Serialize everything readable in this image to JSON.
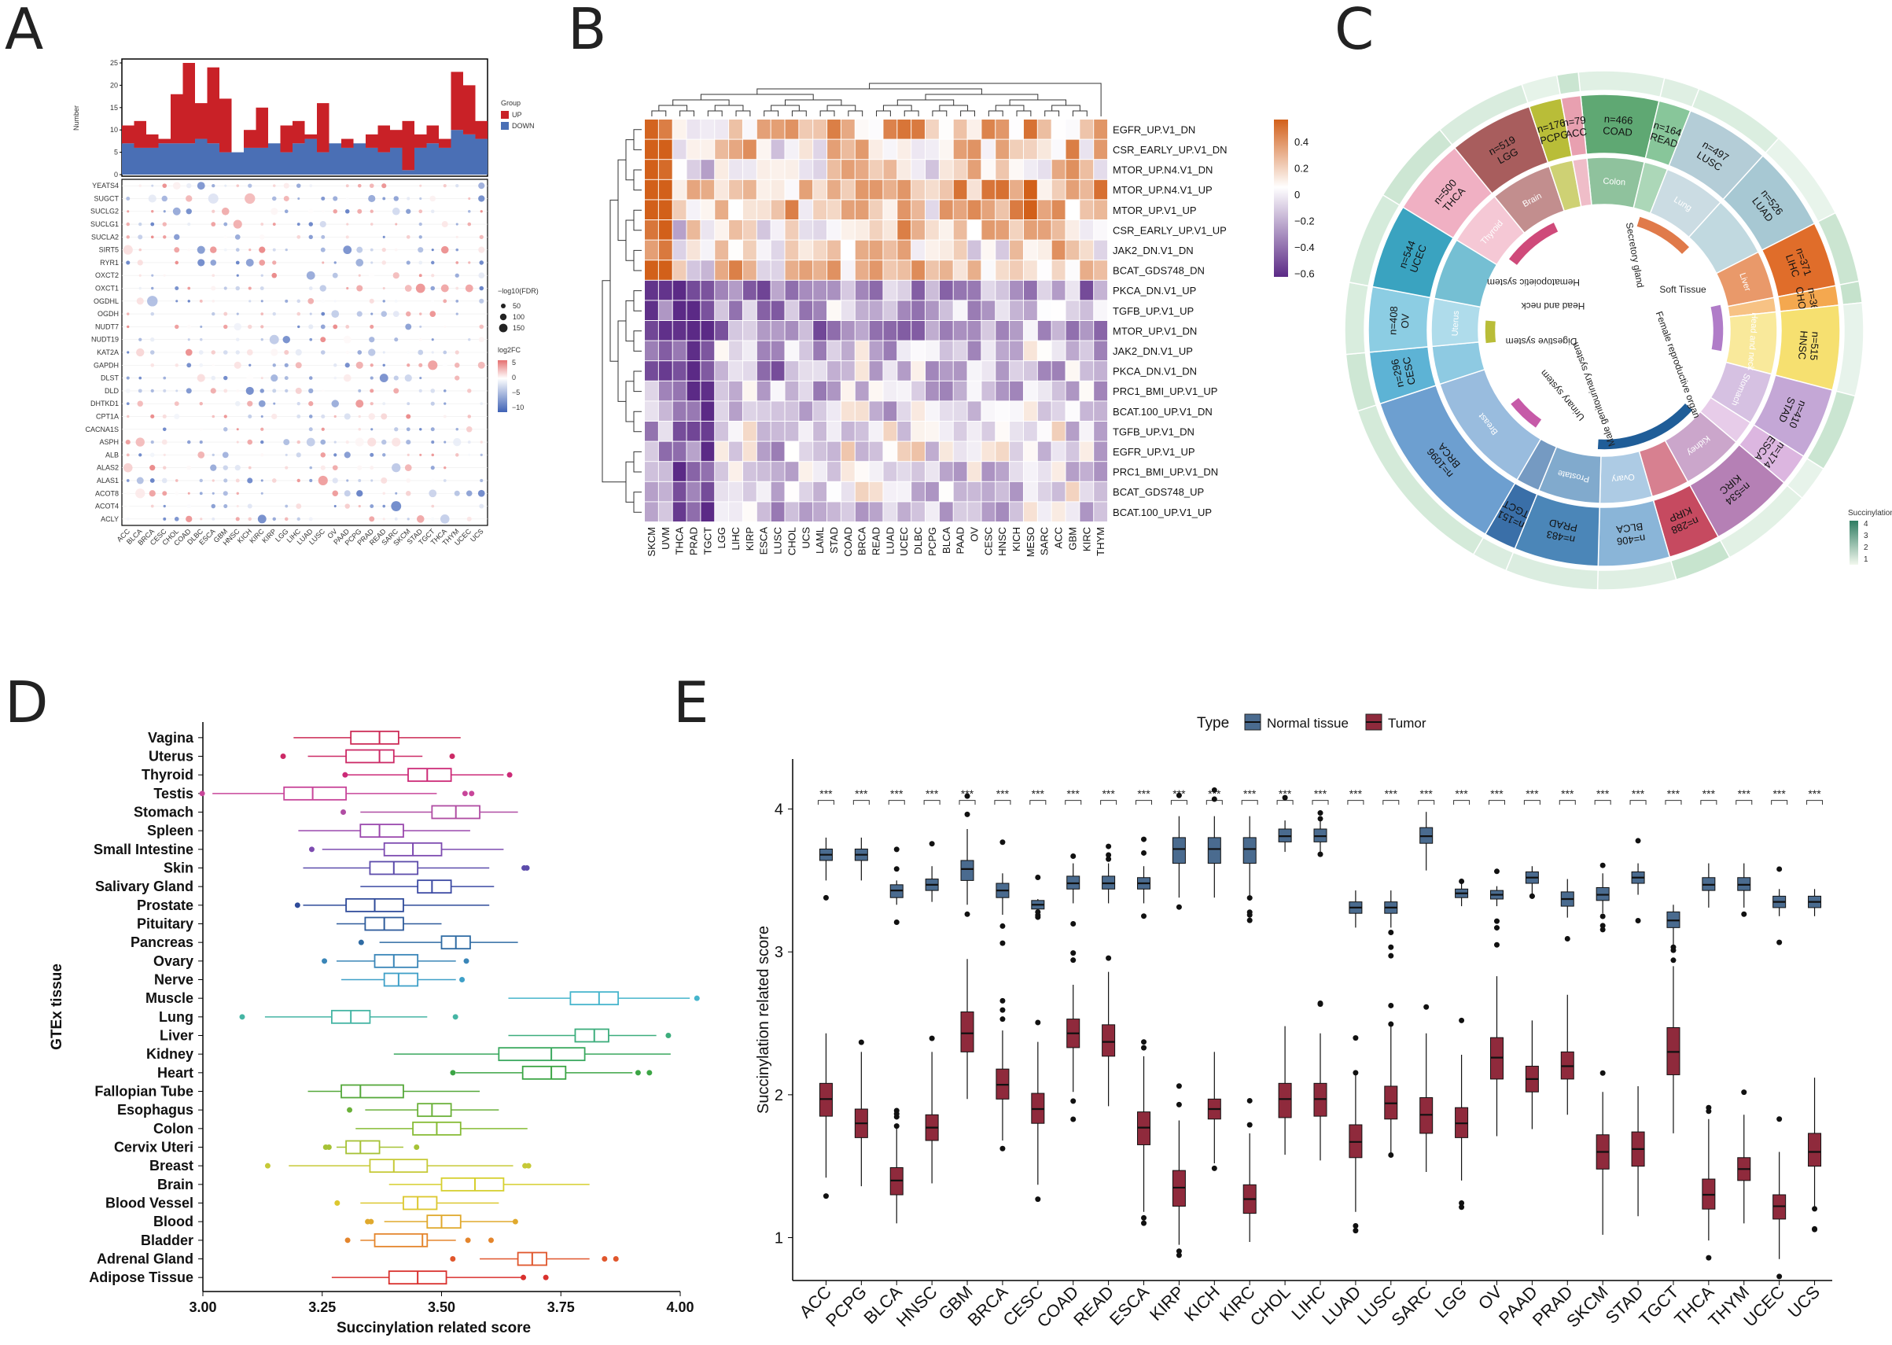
{
  "panels": {
    "A": {
      "letter": "A",
      "chart_data": {
        "type": "bar+dot",
        "ylabel_top": "Number",
        "y_ticks_top": [
          "0",
          "5",
          "10",
          "15",
          "20",
          "25"
        ],
        "legend_group_title": "Group",
        "legend_groups": [
          "UP",
          "DOWN"
        ],
        "legend_size_title": "−log10(FDR)",
        "legend_size_values": [
          "50",
          "100",
          "150"
        ],
        "legend_color_title": "log2FC",
        "legend_color_values": [
          "5",
          "0",
          "−5",
          "−10"
        ],
        "cancers": [
          "ACC",
          "BLCA",
          "BRCA",
          "CESC",
          "CHOL",
          "COAD",
          "DLBC",
          "ESCA",
          "GBM",
          "HNSC",
          "KICH",
          "KIRC",
          "KIRP",
          "LGG",
          "LIHC",
          "LUAD",
          "LUSC",
          "OV",
          "PAAD",
          "PCPG",
          "PRAD",
          "READ",
          "SARC",
          "SKCM",
          "STAD",
          "TGCT",
          "THCA",
          "THYM",
          "UCEC",
          "UCS"
        ],
        "genes": [
          "YEATS4",
          "SUGCT",
          "SUCLG2",
          "SUCLG1",
          "SUCLA2",
          "SIRT5",
          "RYR1",
          "OXCT2",
          "OXCT1",
          "OGDHL",
          "OGDH",
          "NUDT7",
          "NUDT19",
          "KAT2A",
          "GAPDH",
          "DLST",
          "DLD",
          "DHTKD1",
          "CPT1A",
          "CACNA1S",
          "ASPH",
          "ALB",
          "ALAS2",
          "ALAS1",
          "ACOT8",
          "ACOT4",
          "ACLY"
        ],
        "up_counts": [
          11,
          12,
          9,
          8,
          18,
          25,
          16,
          24,
          17,
          5,
          10,
          15,
          3,
          11,
          12,
          9,
          16,
          7,
          8,
          6,
          9,
          11,
          10,
          12,
          9,
          11,
          8,
          23,
          20,
          12
        ],
        "down_counts": [
          7,
          6,
          6,
          7,
          7,
          7,
          8,
          7,
          5,
          5,
          6,
          6,
          7,
          5,
          7,
          8,
          5,
          7,
          6,
          7,
          6,
          5,
          6,
          1,
          6,
          7,
          6,
          10,
          9,
          8
        ]
      }
    },
    "B": {
      "letter": "B",
      "chart_data": {
        "type": "heatmap",
        "columns": [
          "SKCM",
          "UVM",
          "THCA",
          "PRAD",
          "TGCT",
          "LGG",
          "LIHC",
          "KIRP",
          "ESCA",
          "LUSC",
          "CHOL",
          "UCS",
          "LAML",
          "STAD",
          "COAD",
          "BRCA",
          "READ",
          "LUAD",
          "UCEC",
          "DLBC",
          "PCPG",
          "BLCA",
          "PAAD",
          "OV",
          "CESC",
          "HNSC",
          "KICH",
          "MESO",
          "SARC",
          "ACC",
          "GBM",
          "KIRC",
          "THYM"
        ],
        "rows": [
          "EGFR_UP.V1_DN",
          "CSR_EARLY_UP.V1_DN",
          "MTOR_UP.N4.V1_DN",
          "MTOR_UP.N4.V1_UP",
          "MTOR_UP.V1_UP",
          "CSR_EARLY_UP.V1_UP",
          "JAK2_DN.V1_DN",
          "BCAT_GDS748_DN",
          "PKCA_DN.V1_UP",
          "TGFB_UP.V1_UP",
          "MTOR_UP.V1_DN",
          "JAK2_DN.V1_UP",
          "PKCA_DN.V1_DN",
          "PRC1_BMI_UP.V1_UP",
          "BCAT.100_UP.V1_DN",
          "TGFB_UP.V1_DN",
          "EGFR_UP.V1_UP",
          "PRC1_BMI_UP.V1_DN",
          "BCAT_GDS748_UP",
          "BCAT.100_UP.V1_UP"
        ],
        "color_scale_ticks": [
          "0.4",
          "0.2",
          "0",
          "−0.2",
          "−0.4",
          "−0.6"
        ],
        "color_range": [
          -0.6,
          0.45
        ]
      }
    },
    "C": {
      "letter": "C",
      "chart_data": {
        "type": "circos",
        "legend_title": "Succinylation.score",
        "legend_values": [
          "4",
          "3",
          "2",
          "1"
        ],
        "cancer_labels": [
          "n=466 COAD",
          "n=164 READ",
          "n=497 LUSC",
          "n=526 LUAD",
          "n=371 LIHC",
          "n=36 CHOL",
          "n=515 HNSC",
          "n=410 STAD",
          "n=174 ESCA",
          "n=534 KIRC",
          "n=288 KIRP",
          "n=406 BLCA",
          "n=483 PRAD",
          "n=151 TGCT",
          "n=1096 BRCA",
          "n=296 CESC",
          "n=408 OV",
          "n=544 UCEC",
          "n=500 THCA",
          "n=519 LGG",
          "n=176 PCPG",
          "n=79 ACC"
        ],
        "organ_labels": [
          "Colon",
          "Lung",
          "Liver",
          "Head and neck",
          "Stomach",
          "Kidney",
          "Prostate",
          "Breast",
          "Uterus",
          "Ovary",
          "Thyroid",
          "Brain",
          "Adrenal gland",
          "Testis"
        ],
        "system_labels": [
          "Secretory gland",
          "Hematopoietic system",
          "Head and neck",
          "Digestive system",
          "Male genitourinary system",
          "Urinary system",
          "Female reproductive organ",
          "Soft Tissue",
          "Nervous system"
        ]
      }
    },
    "D": {
      "letter": "D",
      "chart_data": {
        "type": "boxplot-horizontal",
        "xlabel": "Succinylation related score",
        "ylabel": "GTEx tissue",
        "xlim": [
          3.0,
          4.0
        ],
        "x_ticks": [
          "3.00",
          "3.25",
          "3.50",
          "3.75",
          "4.00"
        ],
        "tissues": [
          "Vagina",
          "Uterus",
          "Thyroid",
          "Testis",
          "Stomach",
          "Spleen",
          "Small Intestine",
          "Skin",
          "Salivary Gland",
          "Prostate",
          "Pituitary",
          "Pancreas",
          "Ovary",
          "Nerve",
          "Muscle",
          "Lung",
          "Liver",
          "Kidney",
          "Heart",
          "Fallopian Tube",
          "Esophagus",
          "Colon",
          "Cervix Uteri",
          "Breast",
          "Brain",
          "Blood Vessel",
          "Blood",
          "Bladder",
          "Adrenal Gland",
          "Adipose Tissue"
        ],
        "medians": [
          3.37,
          3.37,
          3.47,
          3.23,
          3.53,
          3.37,
          3.44,
          3.4,
          3.48,
          3.36,
          3.38,
          3.53,
          3.4,
          3.41,
          3.83,
          3.31,
          3.82,
          3.73,
          3.73,
          3.33,
          3.48,
          3.49,
          3.33,
          3.4,
          3.57,
          3.45,
          3.5,
          3.46,
          3.69,
          3.45
        ],
        "q1": [
          3.31,
          3.3,
          3.43,
          3.17,
          3.48,
          3.33,
          3.38,
          3.35,
          3.45,
          3.3,
          3.34,
          3.5,
          3.36,
          3.38,
          3.77,
          3.27,
          3.78,
          3.62,
          3.67,
          3.29,
          3.45,
          3.44,
          3.3,
          3.35,
          3.5,
          3.42,
          3.47,
          3.36,
          3.66,
          3.39
        ],
        "q3": [
          3.41,
          3.4,
          3.52,
          3.3,
          3.58,
          3.42,
          3.5,
          3.45,
          3.52,
          3.42,
          3.42,
          3.56,
          3.45,
          3.45,
          3.87,
          3.35,
          3.85,
          3.8,
          3.76,
          3.42,
          3.52,
          3.54,
          3.37,
          3.47,
          3.63,
          3.49,
          3.54,
          3.47,
          3.72,
          3.51
        ],
        "whisker_low": [
          3.19,
          3.22,
          3.3,
          3.02,
          3.33,
          3.2,
          3.25,
          3.21,
          3.33,
          3.21,
          3.28,
          3.37,
          3.28,
          3.29,
          3.64,
          3.13,
          3.64,
          3.4,
          3.53,
          3.22,
          3.34,
          3.32,
          3.28,
          3.18,
          3.39,
          3.33,
          3.38,
          3.33,
          3.58,
          3.27
        ],
        "whisker_high": [
          3.54,
          3.46,
          3.63,
          3.49,
          3.66,
          3.56,
          3.63,
          3.6,
          3.61,
          3.6,
          3.5,
          3.66,
          3.53,
          3.53,
          4.02,
          3.47,
          3.95,
          3.98,
          3.9,
          3.58,
          3.62,
          3.68,
          3.42,
          3.65,
          3.81,
          3.62,
          3.65,
          3.53,
          3.81,
          3.67
        ],
        "colors": [
          "#cc2a55",
          "#cc2a66",
          "#cc2a77",
          "#c8469a",
          "#b04da3",
          "#9a47ad",
          "#7d4bb0",
          "#5c4cab",
          "#3c4aa3",
          "#2f4b9a",
          "#2e5b9b",
          "#2f6ba3",
          "#3a86b8",
          "#3fa0c8",
          "#46b5cc",
          "#45b5a4",
          "#3cad7c",
          "#3aa85e",
          "#3ca545",
          "#55a83a",
          "#6bb13a",
          "#86bb35",
          "#a6c236",
          "#c6c937",
          "#d6cf2e",
          "#dcc72e",
          "#e0a92d",
          "#e4852c",
          "#e0562c",
          "#d9312e"
        ]
      }
    },
    "E": {
      "letter": "E",
      "chart_data": {
        "type": "boxplot-grouped",
        "legend_title": "Type",
        "legend_entries": [
          "Normal tissue",
          "Tumor"
        ],
        "ylabel": "Succinylation related score",
        "ylim": [
          0.7,
          4.35
        ],
        "y_ticks": [
          "1",
          "2",
          "3",
          "4"
        ],
        "significance": "***",
        "categories": [
          "ACC",
          "PCPG",
          "BLCA",
          "HNSC",
          "GBM",
          "BRCA",
          "CESC",
          "COAD",
          "READ",
          "ESCA",
          "KIRP",
          "KICH",
          "KIRC",
          "CHOL",
          "LIHC",
          "LUAD",
          "LUSC",
          "SARC",
          "LGG",
          "OV",
          "PAAD",
          "PRAD",
          "SKCM",
          "STAD",
          "TGCT",
          "THCA",
          "THYM",
          "UCEC",
          "UCS"
        ],
        "series": [
          {
            "name": "Normal tissue",
            "median": [
              3.68,
              3.68,
              3.43,
              3.47,
              3.58,
              3.43,
              3.33,
              3.48,
              3.48,
              3.48,
              3.72,
              3.72,
              3.72,
              3.81,
              3.81,
              3.31,
              3.31,
              3.81,
              3.41,
              3.4,
              3.52,
              3.37,
              3.4,
              3.52,
              3.22,
              3.47,
              3.47,
              3.35,
              3.35
            ],
            "q1": [
              3.64,
              3.64,
              3.38,
              3.43,
              3.5,
              3.38,
              3.3,
              3.44,
              3.44,
              3.44,
              3.62,
              3.62,
              3.62,
              3.77,
              3.77,
              3.27,
              3.27,
              3.76,
              3.38,
              3.37,
              3.48,
              3.32,
              3.36,
              3.48,
              3.17,
              3.43,
              3.43,
              3.31,
              3.31
            ],
            "q3": [
              3.72,
              3.72,
              3.47,
              3.51,
              3.64,
              3.48,
              3.36,
              3.53,
              3.53,
              3.52,
              3.8,
              3.8,
              3.8,
              3.86,
              3.86,
              3.35,
              3.35,
              3.87,
              3.44,
              3.43,
              3.56,
              3.42,
              3.45,
              3.56,
              3.28,
              3.52,
              3.52,
              3.39,
              3.39
            ],
            "low": [
              3.5,
              3.5,
              3.33,
              3.35,
              3.33,
              3.26,
              3.3,
              3.34,
              3.34,
              3.34,
              3.38,
              3.38,
              3.38,
              3.7,
              3.7,
              3.17,
              3.17,
              3.57,
              3.32,
              3.32,
              3.4,
              3.24,
              3.27,
              3.4,
              3.04,
              3.31,
              3.31,
              3.25,
              3.25
            ],
            "high": [
              3.8,
              3.8,
              3.5,
              3.6,
              3.86,
              3.55,
              3.37,
              3.62,
              3.62,
              3.6,
              3.95,
              3.95,
              3.95,
              3.92,
              3.92,
              3.43,
              3.43,
              3.98,
              3.48,
              3.46,
              3.6,
              3.51,
              3.55,
              3.62,
              3.33,
              3.62,
              3.62,
              3.44,
              3.44
            ]
          },
          {
            "name": "Tumor",
            "median": [
              1.97,
              1.8,
              1.4,
              1.77,
              2.43,
              2.07,
              1.9,
              2.43,
              2.37,
              1.77,
              1.35,
              1.9,
              1.27,
              1.97,
              1.97,
              1.67,
              1.94,
              1.86,
              1.8,
              2.26,
              2.11,
              2.2,
              1.6,
              1.62,
              2.3,
              1.3,
              1.48,
              1.22,
              1.6
            ],
            "q1": [
              1.85,
              1.7,
              1.3,
              1.68,
              2.3,
              1.97,
              1.8,
              2.33,
              2.27,
              1.65,
              1.22,
              1.83,
              1.17,
              1.84,
              1.85,
              1.56,
              1.83,
              1.73,
              1.7,
              2.11,
              2.02,
              2.11,
              1.48,
              1.5,
              2.14,
              1.2,
              1.4,
              1.13,
              1.5
            ],
            "q3": [
              2.08,
              1.9,
              1.49,
              1.86,
              2.58,
              2.18,
              2.01,
              2.53,
              2.49,
              1.88,
              1.47,
              1.97,
              1.37,
              2.08,
              2.08,
              1.79,
              2.06,
              1.98,
              1.91,
              2.4,
              2.2,
              2.3,
              1.72,
              1.74,
              2.47,
              1.41,
              1.56,
              1.3,
              1.73
            ],
            "low": [
              1.42,
              1.36,
              1.1,
              1.38,
              1.97,
              1.68,
              1.37,
              2.02,
              1.92,
              1.18,
              0.95,
              1.52,
              0.97,
              1.58,
              1.54,
              1.18,
              1.58,
              1.46,
              1.4,
              1.71,
              1.76,
              1.86,
              1.02,
              1.15,
              1.73,
              0.98,
              1.1,
              0.85,
              1.22
            ],
            "high": [
              2.43,
              2.3,
              1.78,
              2.3,
              2.95,
              2.45,
              2.37,
              2.77,
              2.86,
              2.27,
              1.82,
              2.3,
              1.73,
              2.48,
              2.43,
              2.15,
              2.48,
              2.43,
              2.28,
              2.83,
              2.52,
              2.7,
              2.02,
              2.06,
              2.9,
              1.83,
              1.86,
              1.6,
              2.12
            ]
          }
        ]
      }
    }
  }
}
